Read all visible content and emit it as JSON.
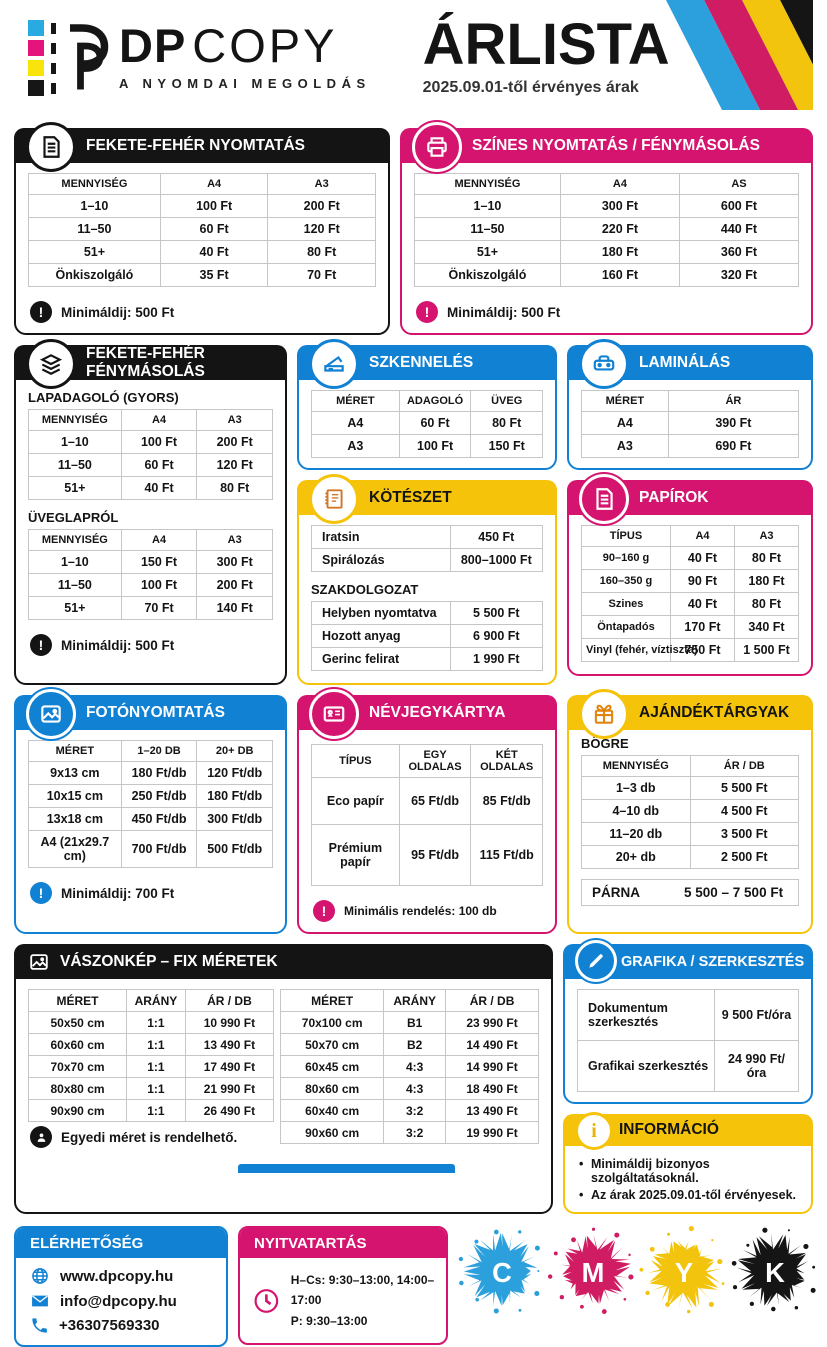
{
  "colors": {
    "cyan": "#29abe2",
    "blue": "#1181d3",
    "magenta": "#d4146e",
    "yellow": "#f5c40a",
    "black": "#141414"
  },
  "header": {
    "brand_dp": "DP",
    "brand_copy": "COPY",
    "tagline": "A NYOMDAI MEGOLDÁS",
    "title": "ÁRLISTA",
    "subtitle": "2025.09.01-től érvényes árak"
  },
  "sections": {
    "bw_print": {
      "title": "FEKETE-FEHÉR NYOMTATÁS",
      "cols": [
        "MENNYISÉG",
        "A4",
        "A3"
      ],
      "rows": [
        [
          "1–10",
          "100 Ft",
          "200 Ft"
        ],
        [
          "11–50",
          "60 Ft",
          "120 Ft"
        ],
        [
          "51+",
          "40 Ft",
          "80 Ft"
        ],
        [
          "Önkiszolgáló",
          "35 Ft",
          "70 Ft"
        ]
      ],
      "note": "Minimáldij: 500 Ft"
    },
    "color_print": {
      "title": "SZÍNES NYOMTATÁS / FÉNYMÁSOLÁS",
      "cols": [
        "MENNYISÉG",
        "A4",
        "AS"
      ],
      "rows": [
        [
          "1–10",
          "300 Ft",
          "600 Ft"
        ],
        [
          "11–50",
          "220 Ft",
          "440 Ft"
        ],
        [
          "51+",
          "180 Ft",
          "360 Ft"
        ],
        [
          "Önkiszolgáló",
          "160 Ft",
          "320 Ft"
        ]
      ],
      "note": "Minimáldij: 500 Ft"
    },
    "bw_copy": {
      "title": "FEKETE-FEHÉR FÉNYMÁSOLÁS",
      "sub1": "LAPADAGOLÓ (GYORS)",
      "cols": [
        "MENNYISÉG",
        "A4",
        "A3"
      ],
      "rows1": [
        [
          "1–10",
          "100 Ft",
          "200 Ft"
        ],
        [
          "11–50",
          "60 Ft",
          "120 Ft"
        ],
        [
          "51+",
          "40 Ft",
          "80 Ft"
        ]
      ],
      "sub2": "ÜVEGLAPRÓL",
      "rows2": [
        [
          "1–10",
          "150 Ft",
          "300 Ft"
        ],
        [
          "11–50",
          "100 Ft",
          "200 Ft"
        ],
        [
          "51+",
          "70 Ft",
          "140 Ft"
        ]
      ],
      "note": "Minimáldij: 500 Ft"
    },
    "scan": {
      "title": "SZKENNELÉS",
      "cols": [
        "MÉRET",
        "ADAGOLÓ",
        "ÜVEG"
      ],
      "rows": [
        [
          "A4",
          "60 Ft",
          "80 Ft"
        ],
        [
          "A3",
          "100 Ft",
          "150 Ft"
        ]
      ]
    },
    "laminate": {
      "title": "LAMINÁLÁS",
      "cols": [
        "MÉRET",
        "ÁR"
      ],
      "rows": [
        [
          "A4",
          "390 Ft"
        ],
        [
          "A3",
          "690 Ft"
        ]
      ]
    },
    "binding": {
      "title": "KÖTÉSZET",
      "rows1": [
        [
          "Iratsin",
          "450 Ft"
        ],
        [
          "Spirálozás",
          "800–1000 Ft"
        ]
      ],
      "sub": "SZAKDOLGOZAT",
      "rows2": [
        [
          "Helyben nyomtatva",
          "5 500 Ft"
        ],
        [
          "Hozott anyag",
          "6 900 Ft"
        ],
        [
          "Gerinc felirat",
          "1 990 Ft"
        ]
      ]
    },
    "papers": {
      "title": "PAPÍROK",
      "cols": [
        "TÍPUS",
        "A4",
        "A3"
      ],
      "rows": [
        [
          "90–160 g",
          "40 Ft",
          "80 Ft"
        ],
        [
          "160–350 g",
          "90 Ft",
          "180 Ft"
        ],
        [
          "Szines",
          "40 Ft",
          "80 Ft"
        ],
        [
          "Öntapadós",
          "170 Ft",
          "340 Ft"
        ],
        [
          "Vinyl (fehér, víztiszta)",
          "750 Ft",
          "1 500 Ft"
        ]
      ]
    },
    "photo": {
      "title": "FOTÓNYOMTATÁS",
      "cols": [
        "MÉRET",
        "1–20 DB",
        "20+ DB"
      ],
      "rows": [
        [
          "9x13 cm",
          "180 Ft/db",
          "120 Ft/db"
        ],
        [
          "10x15 cm",
          "250 Ft/db",
          "180 Ft/db"
        ],
        [
          "13x18 cm",
          "450 Ft/db",
          "300 Ft/db"
        ],
        [
          "A4 (21x29.7 cm)",
          "700 Ft/db",
          "500 Ft/db"
        ]
      ],
      "note": "Minimáldij: 700 Ft"
    },
    "bizcard": {
      "title": "NÉVJEGYKÁRTYA",
      "cols": [
        "TÍPUS",
        "EGY OLDALAS",
        "KÉT OLDALAS"
      ],
      "rows": [
        [
          "Eco papír",
          "65 Ft/db",
          "85 Ft/db"
        ],
        [
          "Prémium papír",
          "95 Ft/db",
          "115 Ft/db"
        ]
      ],
      "note": "Minimális rendelés: 100 db"
    },
    "gifts": {
      "title": "AJÁNDÉKTÁRGYAK",
      "sub": "BÖGRE",
      "cols": [
        "MENNYISÉG",
        "ÁR / DB"
      ],
      "rows": [
        [
          "1–3 db",
          "5 500 Ft"
        ],
        [
          "4–10 db",
          "4 500 Ft"
        ],
        [
          "11–20 db",
          "3 500 Ft"
        ],
        [
          "20+ db",
          "2 500 Ft"
        ]
      ],
      "parna_label": "PÁRNA",
      "parna_value": "5 500 – 7 500 Ft"
    },
    "canvas": {
      "title": "VÁSZONKÉP – FIX MÉRETEK",
      "cols": [
        "MÉRET",
        "ARÁNY",
        "ÁR / DB"
      ],
      "rows_left": [
        [
          "50x50 cm",
          "1:1",
          "10 990 Ft"
        ],
        [
          "60x60 cm",
          "1:1",
          "13 490 Ft"
        ],
        [
          "70x70 cm",
          "1:1",
          "17 490 Ft"
        ],
        [
          "80x80 cm",
          "1:1",
          "21 990 Ft"
        ],
        [
          "90x90 cm",
          "1:1",
          "26 490 Ft"
        ]
      ],
      "rows_right": [
        [
          "70x100 cm",
          "B1",
          "23 990 Ft"
        ],
        [
          "50x70 cm",
          "B2",
          "14 490 Ft"
        ],
        [
          "60x45 cm",
          "4:3",
          "14 990 Ft"
        ],
        [
          "80x60 cm",
          "4:3",
          "18 490 Ft"
        ],
        [
          "60x40 cm",
          "3:2",
          "13 490 Ft"
        ],
        [
          "90x60 cm",
          "3:2",
          "19 990 Ft"
        ]
      ],
      "note": "Egyedi méret is rendelhető."
    },
    "graphics": {
      "title": "GRAFIKA / SZERKESZTÉS",
      "rows": [
        [
          "Dokumentum szerkesztés",
          "9 500 Ft/óra"
        ],
        [
          "Grafikai szerkesztés",
          "24 990 Ft/óra"
        ]
      ]
    },
    "info": {
      "title": "INFORMÁCIÓ",
      "bullets": [
        "Minimáldij bizonyos szolgáltatásoknál.",
        "Az árak 2025.09.01-től érvényesek."
      ]
    },
    "contact": {
      "title": "ELÉRHETŐSÉG",
      "website": "www.dpcopy.hu",
      "email": "info@dpcopy.hu",
      "phone": "+36307569330"
    },
    "hours": {
      "title": "NYITVATARTÁS",
      "line1": "H–Cs:  9:30–13:00, 14:00–17:00",
      "line2": "P:  9:30–13:00"
    }
  },
  "splats": [
    {
      "letter": "C",
      "color": "#2ba0dc"
    },
    {
      "letter": "M",
      "color": "#cf1c63"
    },
    {
      "letter": "Y",
      "color": "#f2c40d"
    },
    {
      "letter": "K",
      "color": "#151515"
    }
  ]
}
